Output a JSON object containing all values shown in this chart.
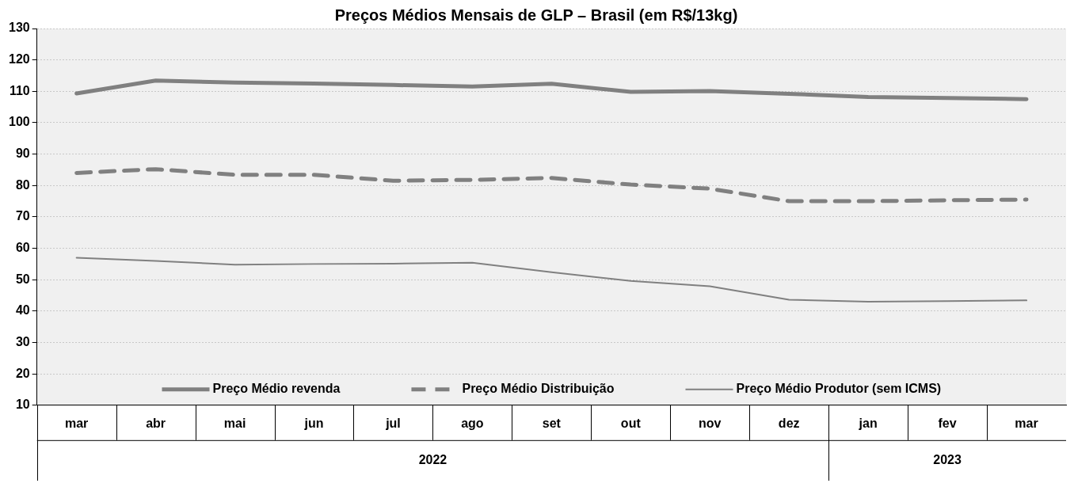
{
  "chart_data": {
    "type": "line",
    "title": "Preços Médios Mensais de GLP – Brasil (em R$/13kg)",
    "categories": [
      "mar",
      "abr",
      "mai",
      "jun",
      "jul",
      "ago",
      "set",
      "out",
      "nov",
      "dez",
      "jan",
      "fev",
      "mar"
    ],
    "annotations": [
      "2022",
      "2023"
    ],
    "series": [
      {
        "name": "Preço Médio revenda",
        "color": "#808080",
        "line_style": "solid",
        "values": [
          109.3,
          113.4,
          112.8,
          112.5,
          112.0,
          111.5,
          112.4,
          109.8,
          110.1,
          109.2,
          108.2,
          107.9,
          107.5
        ]
      },
      {
        "name": "Preço Médio Distribuição",
        "color": "#808080",
        "line_style": "dashed",
        "values": [
          84.0,
          85.2,
          83.4,
          83.4,
          81.5,
          81.8,
          82.4,
          80.3,
          79.0,
          75.0,
          75.0,
          75.3,
          75.5
        ]
      },
      {
        "name": "Preço Médio Produtor (sem ICMS)",
        "color": "#808080",
        "line_style": "solid",
        "values": [
          57.0,
          56.0,
          54.8,
          55.0,
          55.1,
          55.4,
          52.4,
          49.6,
          47.9,
          43.6,
          43.0,
          43.2,
          43.4
        ]
      }
    ],
    "ylim": [
      10,
      130
    ],
    "yticks": [
      10,
      20,
      30,
      40,
      50,
      60,
      70,
      80,
      90,
      100,
      110,
      120,
      130
    ],
    "grid": "y",
    "legend": "bottom",
    "marker": "none"
  }
}
